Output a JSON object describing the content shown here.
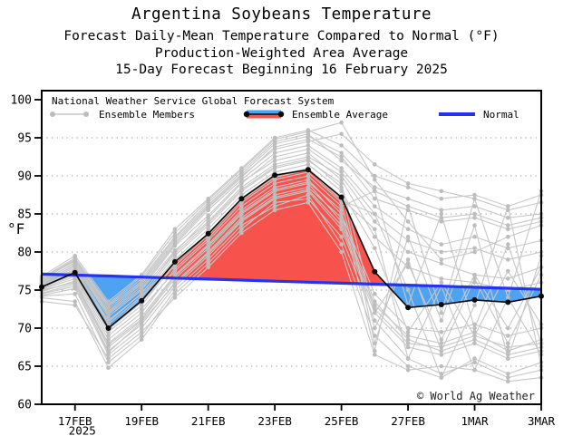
{
  "header": {
    "title": "Argentina Soybeans Temperature",
    "subtitle1": "Forecast Daily-Mean Temperature Compared to Normal (°F)",
    "subtitle2": "Production-Weighted Area Average",
    "subtitle3": "15-Day Forecast Beginning 16 February 2025"
  },
  "legend": {
    "source": "National Weather Service Global Forecast System",
    "members_label": "Ensemble Members",
    "average_label": "Ensemble Average",
    "normal_label": "Normal"
  },
  "axes": {
    "y_label": "°F",
    "y_ticks": [
      60,
      65,
      70,
      75,
      80,
      85,
      90,
      95,
      100
    ],
    "y_min": 60,
    "y_max": 100,
    "x_tick_labels": [
      "17FEB",
      "19FEB",
      "21FEB",
      "23FEB",
      "25FEB",
      "27FEB",
      "1MAR",
      "3MAR"
    ],
    "x_tick_days": [
      1,
      3,
      5,
      7,
      9,
      11,
      13,
      15
    ],
    "x_year_label": "2025",
    "grid": "dotted"
  },
  "footer": {
    "copyright": "© World Ag Weather"
  },
  "colors": {
    "red_fill": "#f8524d",
    "blue_fill": "#4da3f2",
    "normal_line": "#2433f2",
    "member_line": "#c7c7c7",
    "member_dot": "#bdbdbd",
    "average_line": "#0a0a0a",
    "grid": "#9a9a9a",
    "frame": "#000000"
  },
  "chart_data": {
    "type": "line",
    "x_days": [
      "16FEB",
      "17FEB",
      "18FEB",
      "19FEB",
      "20FEB",
      "21FEB",
      "22FEB",
      "23FEB",
      "24FEB",
      "25FEB",
      "26FEB",
      "27FEB",
      "28FEB",
      "1MAR",
      "2MAR",
      "3MAR"
    ],
    "ensemble_average": [
      75.4,
      77.3,
      70.0,
      73.6,
      78.7,
      82.4,
      87.0,
      90.1,
      90.8,
      87.2,
      77.4,
      72.7,
      73.1,
      73.7,
      73.4,
      74.2
    ],
    "normal": [
      77.1,
      76.97,
      76.84,
      76.7,
      76.57,
      76.44,
      76.31,
      76.17,
      76.04,
      75.91,
      75.77,
      75.64,
      75.51,
      75.37,
      75.24,
      75.1
    ],
    "fill_rule": "red where ensemble average above normal, blue where below",
    "members": [
      [
        76.0,
        78.2,
        71.5,
        75.0,
        80.2,
        84.0,
        88.5,
        91.5,
        92.5,
        90.0,
        84.0,
        80.0,
        78.5,
        77.0,
        76.5,
        78.0
      ],
      [
        75.0,
        76.0,
        67.5,
        71.0,
        76.5,
        80.5,
        85.0,
        88.0,
        89.0,
        84.0,
        73.0,
        69.0,
        68.0,
        69.5,
        67.0,
        68.5
      ],
      [
        76.5,
        79.0,
        73.0,
        76.5,
        82.0,
        86.5,
        90.5,
        94.5,
        95.5,
        92.0,
        88.5,
        87.0,
        85.5,
        86.0,
        84.5,
        85.0
      ],
      [
        74.0,
        73.5,
        64.8,
        68.5,
        74.5,
        78.5,
        83.0,
        86.5,
        87.0,
        82.0,
        71.0,
        66.0,
        64.0,
        65.5,
        63.5,
        64.5
      ],
      [
        75.5,
        77.5,
        70.0,
        74.0,
        79.0,
        83.0,
        87.5,
        90.5,
        91.5,
        88.0,
        80.5,
        69.5,
        76.0,
        69.0,
        77.5,
        70.5
      ],
      [
        76.2,
        78.5,
        72.0,
        75.5,
        81.0,
        85.5,
        89.5,
        93.0,
        94.0,
        91.0,
        86.0,
        83.0,
        81.0,
        82.0,
        80.5,
        81.5
      ],
      [
        74.5,
        75.5,
        66.5,
        70.0,
        75.5,
        79.5,
        84.0,
        87.0,
        88.0,
        83.0,
        72.0,
        67.5,
        66.5,
        68.0,
        66.0,
        67.0
      ],
      [
        75.8,
        78.0,
        71.0,
        74.5,
        80.0,
        84.5,
        89.0,
        92.5,
        93.5,
        90.5,
        85.0,
        81.5,
        80.0,
        80.5,
        79.0,
        80.0
      ],
      [
        75.2,
        76.8,
        69.0,
        72.5,
        77.5,
        81.5,
        86.0,
        89.0,
        90.0,
        86.0,
        88.0,
        73.0,
        85.0,
        70.0,
        81.0,
        68.0
      ],
      [
        76.8,
        79.5,
        73.5,
        77.0,
        83.0,
        87.0,
        91.0,
        95.0,
        96.0,
        94.0,
        90.0,
        88.5,
        87.0,
        87.5,
        86.0,
        87.5
      ],
      [
        74.8,
        76.2,
        68.0,
        71.5,
        77.0,
        81.0,
        85.5,
        88.5,
        89.5,
        85.0,
        74.5,
        70.0,
        69.5,
        70.5,
        69.0,
        70.0
      ],
      [
        75.6,
        77.8,
        70.5,
        74.2,
        79.5,
        83.5,
        88.0,
        91.0,
        92.0,
        89.0,
        72.0,
        78.5,
        68.5,
        77.0,
        70.0,
        78.0
      ],
      [
        76.4,
        78.8,
        72.5,
        76.0,
        81.5,
        86.0,
        90.0,
        93.5,
        94.5,
        95.5,
        91.5,
        89.0,
        88.0,
        87.0,
        85.5,
        86.5
      ],
      [
        74.2,
        74.5,
        65.5,
        69.0,
        75.0,
        79.0,
        83.5,
        86.0,
        87.5,
        81.0,
        69.0,
        65.0,
        63.5,
        66.0,
        64.0,
        65.5
      ],
      [
        75.4,
        77.0,
        69.5,
        73.0,
        78.5,
        82.5,
        87.0,
        90.0,
        91.0,
        87.0,
        83.0,
        66.0,
        75.5,
        64.5,
        74.0,
        66.5
      ],
      [
        76.6,
        79.2,
        73.2,
        76.8,
        82.5,
        86.8,
        90.8,
        94.8,
        95.8,
        97.0,
        89.5,
        84.0,
        79.0,
        80.0,
        82.0,
        83.5
      ],
      [
        74.6,
        75.8,
        67.0,
        70.5,
        76.0,
        80.0,
        84.5,
        87.5,
        88.5,
        84.5,
        73.5,
        68.5,
        67.0,
        68.5,
        66.5,
        67.5
      ],
      [
        75.9,
        78.3,
        71.8,
        75.2,
        80.8,
        84.8,
        89.2,
        92.0,
        93.0,
        89.5,
        82.0,
        78.0,
        76.5,
        76.0,
        75.0,
        76.0
      ],
      [
        75.1,
        76.5,
        68.5,
        72.0,
        77.8,
        81.8,
        86.5,
        89.5,
        90.5,
        86.5,
        70.0,
        79.0,
        67.0,
        76.5,
        68.0,
        77.0
      ],
      [
        76.1,
        78.6,
        72.2,
        75.8,
        81.2,
        85.8,
        89.8,
        93.8,
        94.8,
        92.5,
        87.0,
        85.5,
        84.0,
        84.5,
        83.0,
        84.0
      ],
      [
        73.5,
        73.0,
        66.0,
        69.5,
        74.0,
        78.0,
        82.5,
        85.5,
        86.5,
        80.0,
        66.5,
        64.5,
        65.0,
        64.5,
        63.0,
        63.5
      ],
      [
        75.3,
        77.2,
        69.8,
        73.4,
        78.2,
        82.2,
        86.8,
        89.8,
        90.8,
        86.8,
        85.0,
        75.0,
        63.5,
        73.0,
        86.0,
        65.0
      ],
      [
        76.3,
        78.9,
        72.8,
        76.2,
        81.8,
        86.2,
        90.2,
        94.2,
        95.2,
        93.0,
        88.0,
        86.0,
        84.5,
        85.0,
        83.5,
        84.5
      ],
      [
        74.9,
        76.0,
        67.8,
        71.2,
        76.8,
        80.8,
        85.2,
        88.2,
        89.2,
        85.5,
        67.0,
        86.0,
        72.0,
        87.0,
        74.0,
        88.0
      ],
      [
        75.7,
        77.6,
        70.8,
        74.6,
        79.8,
        83.8,
        88.2,
        91.2,
        92.2,
        88.5,
        68.0,
        82.0,
        71.0,
        83.5,
        66.0,
        79.5
      ],
      [
        74.3,
        75.2,
        66.8,
        70.8,
        75.8,
        79.8,
        84.2,
        87.2,
        88.2,
        83.5,
        72.5,
        68.0,
        67.5,
        69.0,
        67.5,
        68.0
      ]
    ]
  }
}
